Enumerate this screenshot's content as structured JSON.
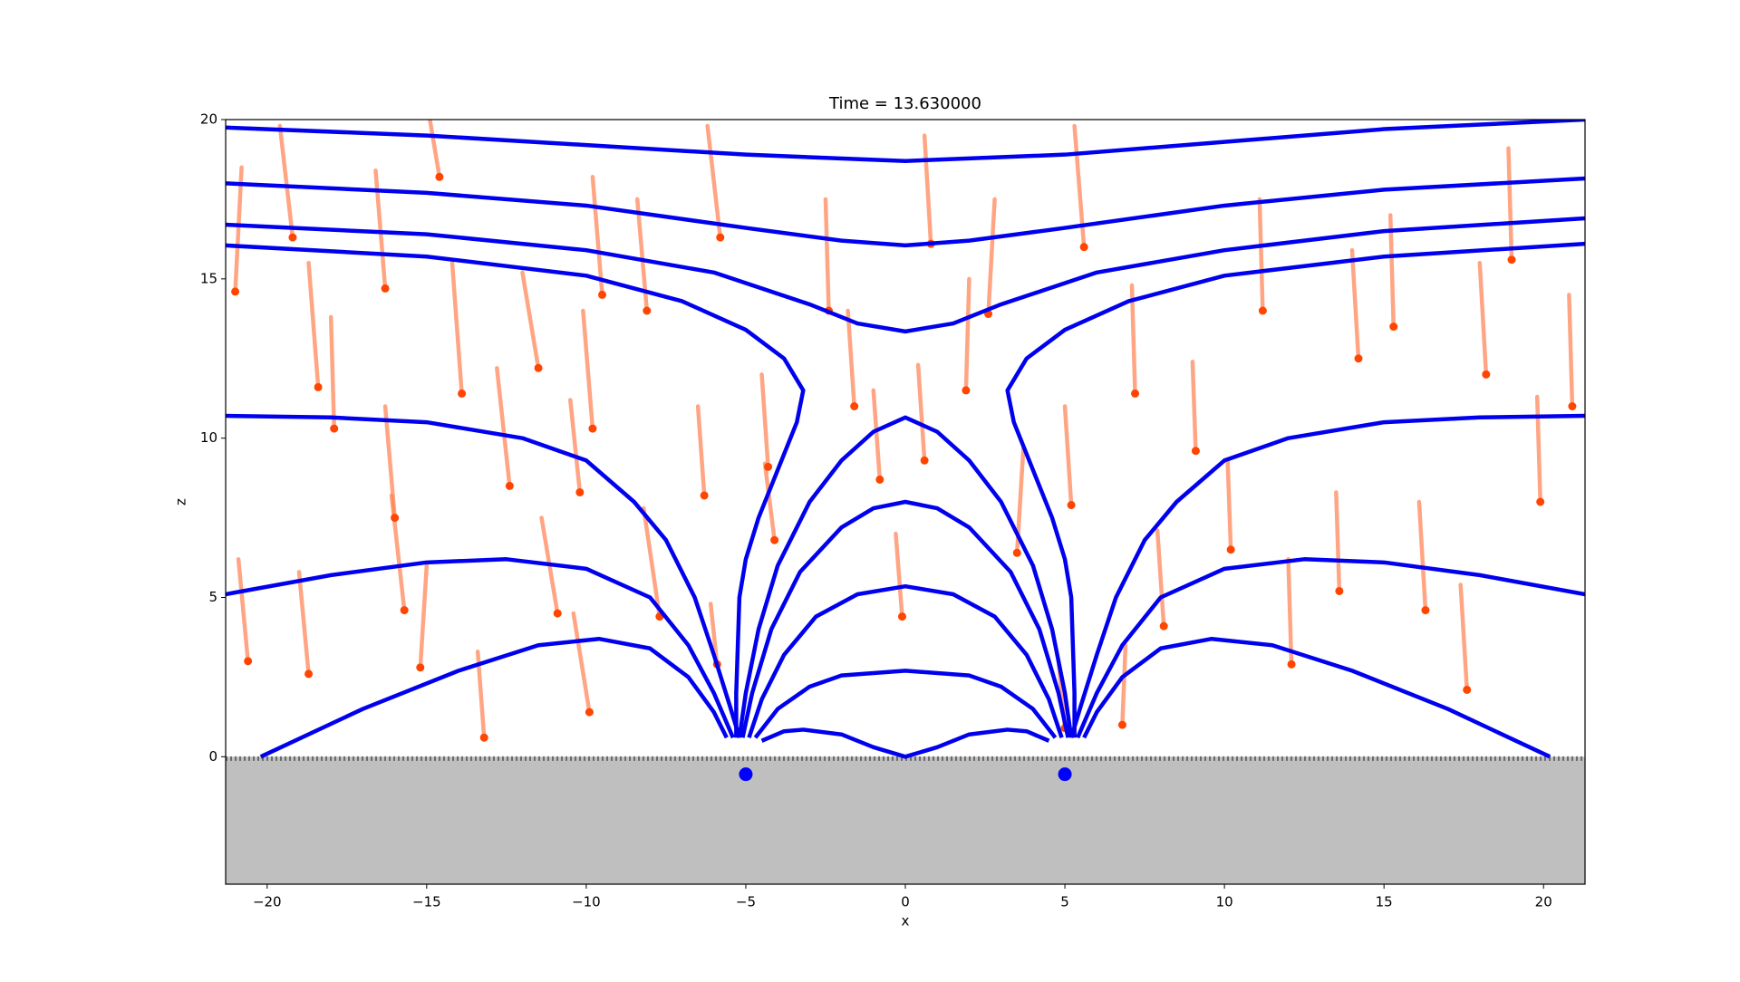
{
  "chart_data": {
    "type": "line",
    "title": "Time = 13.630000",
    "x_label": "x",
    "y_label": "z",
    "xlim": [
      -21.3,
      21.3
    ],
    "ylim": [
      -4,
      20
    ],
    "xticks": [
      {
        "value": -20,
        "label": "−20"
      },
      {
        "value": -15,
        "label": "−15"
      },
      {
        "value": -10,
        "label": "−10"
      },
      {
        "value": -5,
        "label": "−5"
      },
      0,
      5,
      10,
      15,
      20
    ],
    "yticks": [
      0,
      5,
      10,
      15,
      20
    ],
    "grid": false,
    "ground": {
      "color": "#bfbfbf",
      "top": 0
    },
    "particles": {
      "color": "#ff4500",
      "trail_color": "#ff7f50",
      "x": [
        -21.0,
        -19.2,
        -18.4,
        -17.9,
        -16.0,
        -15.7,
        -15.2,
        -16.3,
        -14.6,
        -13.9,
        -12.4,
        -11.5,
        -10.2,
        -9.8,
        -10.9,
        -9.9,
        -9.5,
        -8.1,
        -7.7,
        -6.3,
        -5.8,
        -4.1,
        -4.3,
        -2.4,
        -1.6,
        -0.8,
        -0.1,
        0.6,
        0.8,
        1.9,
        2.6,
        3.5,
        5.2,
        5.6,
        7.2,
        8.1,
        9.1,
        10.2,
        11.2,
        12.1,
        13.6,
        14.2,
        15.3,
        16.3,
        17.6,
        18.2,
        19.0,
        19.9,
        20.9,
        -18.7,
        -20.6,
        5.0,
        -5.9,
        6.8,
        -13.2
      ],
      "values": [
        14.6,
        16.3,
        11.6,
        10.3,
        7.5,
        4.6,
        2.8,
        14.7,
        18.2,
        11.4,
        8.5,
        12.2,
        8.3,
        10.3,
        4.5,
        1.4,
        14.5,
        14.0,
        4.4,
        8.2,
        16.3,
        6.8,
        9.1,
        14.0,
        11.0,
        8.7,
        4.4,
        9.3,
        16.1,
        11.5,
        13.9,
        6.4,
        7.9,
        16.0,
        11.4,
        4.1,
        9.6,
        6.5,
        14.0,
        2.9,
        5.2,
        12.5,
        13.5,
        4.6,
        2.1,
        12.0,
        15.6,
        8.0,
        11.0,
        2.6,
        3.0,
        0.9,
        2.9,
        1.0,
        0.6
      ],
      "trail_x": [
        -20.8,
        -19.6,
        -18.7,
        -18.0,
        -16.3,
        -16.1,
        -15.0,
        -16.6,
        -14.9,
        -14.2,
        -12.8,
        -12.0,
        -10.5,
        -10.1,
        -11.4,
        -10.4,
        -9.8,
        -8.4,
        -8.2,
        -6.5,
        -6.2,
        -4.4,
        -4.5,
        -2.5,
        -1.8,
        -1.0,
        -0.3,
        0.4,
        0.6,
        2.0,
        2.8,
        3.7,
        5.0,
        5.3,
        7.1,
        7.9,
        9.0,
        10.1,
        11.1,
        12.0,
        13.5,
        14.0,
        15.2,
        16.1,
        17.4,
        18.0,
        18.9,
        19.8,
        20.8,
        -19.0,
        -20.9,
        4.8,
        -6.1,
        6.9,
        -13.4
      ],
      "trail_values": [
        18.5,
        19.8,
        15.5,
        13.8,
        11.0,
        8.2,
        6.0,
        18.4,
        20.0,
        15.5,
        12.2,
        15.2,
        11.2,
        14.0,
        7.5,
        4.5,
        18.2,
        17.5,
        7.8,
        11.0,
        19.8,
        9.2,
        12.0,
        17.5,
        14.0,
        11.5,
        7.0,
        12.3,
        19.5,
        15.0,
        17.5,
        9.7,
        11.0,
        19.8,
        14.8,
        7.1,
        12.4,
        9.3,
        17.5,
        6.2,
        8.3,
        15.9,
        17.0,
        8.0,
        5.4,
        15.5,
        19.1,
        11.3,
        14.5,
        5.8,
        6.2,
        3.0,
        4.8,
        3.5,
        3.3
      ]
    },
    "series": [
      {
        "type": "line",
        "color": "#0000ee",
        "x": [
          -21.3,
          -15,
          -10,
          -5,
          0,
          5,
          10,
          15,
          21.3
        ],
        "values": [
          19.75,
          19.5,
          19.2,
          18.9,
          18.7,
          18.9,
          19.3,
          19.7,
          20.0
        ]
      },
      {
        "type": "line",
        "color": "#0000ee",
        "x": [
          -21.3,
          -15,
          -10,
          -5,
          -2,
          0,
          2,
          5,
          10,
          15,
          21.3
        ],
        "values": [
          18.0,
          17.7,
          17.3,
          16.6,
          16.2,
          16.05,
          16.2,
          16.6,
          17.3,
          17.8,
          18.15
        ]
      },
      {
        "type": "line",
        "color": "#0000ee",
        "x": [
          -21.3,
          -15,
          -10,
          -6,
          -3,
          -1.5,
          0,
          1.5,
          3,
          6,
          10,
          15,
          21.3
        ],
        "values": [
          16.7,
          16.4,
          15.9,
          15.2,
          14.2,
          13.6,
          13.35,
          13.6,
          14.2,
          15.2,
          15.9,
          16.5,
          16.9
        ]
      },
      {
        "type": "line",
        "color": "#0000ee",
        "x": [
          -21.3,
          -15,
          -10,
          -7,
          -5,
          -3.8,
          -3.2,
          -3.4,
          -4.0,
          -4.6,
          -5.0,
          -5.2,
          -5.25,
          -5.3,
          -5.3
        ],
        "values": [
          16.05,
          15.7,
          15.1,
          14.3,
          13.4,
          12.5,
          11.5,
          10.5,
          9.0,
          7.5,
          6.2,
          5.0,
          3.5,
          2.0,
          0.6
        ]
      },
      {
        "type": "line",
        "color": "#0000ee",
        "x": [
          21.3,
          15,
          10,
          7,
          5,
          3.8,
          3.2,
          3.4,
          4.0,
          4.6,
          5.0,
          5.2,
          5.25,
          5.3,
          5.3
        ],
        "values": [
          16.1,
          15.7,
          15.1,
          14.3,
          13.4,
          12.5,
          11.5,
          10.5,
          9.0,
          7.5,
          6.2,
          5.0,
          3.5,
          2.0,
          0.6
        ]
      },
      {
        "type": "line",
        "color": "#0000ee",
        "x": [
          -21.3,
          -18,
          -15,
          -12,
          -10,
          -8.5,
          -7.5,
          -6.6,
          -6.0,
          -5.5,
          -5.2
        ],
        "values": [
          10.7,
          10.65,
          10.5,
          10.0,
          9.3,
          8.0,
          6.8,
          5.0,
          3.2,
          1.6,
          0.6
        ]
      },
      {
        "type": "line",
        "color": "#0000ee",
        "x": [
          21.3,
          18,
          15,
          12,
          10,
          8.5,
          7.5,
          6.6,
          6.0,
          5.5,
          5.2
        ],
        "values": [
          10.7,
          10.65,
          10.5,
          10.0,
          9.3,
          8.0,
          6.8,
          5.0,
          3.2,
          1.6,
          0.6
        ]
      },
      {
        "type": "line",
        "color": "#0000ee",
        "x": [
          -21.3,
          -18,
          -15,
          -12.5,
          -10,
          -8,
          -6.8,
          -6.0,
          -5.4
        ],
        "values": [
          5.1,
          5.7,
          6.1,
          6.2,
          5.9,
          5.0,
          3.5,
          2.0,
          0.6
        ]
      },
      {
        "type": "line",
        "color": "#0000ee",
        "x": [
          21.3,
          18,
          15,
          12.5,
          10,
          8,
          6.8,
          6.0,
          5.4
        ],
        "values": [
          5.1,
          5.7,
          6.1,
          6.2,
          5.9,
          5.0,
          3.5,
          2.0,
          0.6
        ]
      },
      {
        "type": "line",
        "color": "#0000ee",
        "x": [
          -20.2,
          -17,
          -14,
          -11.5,
          -9.6,
          -8,
          -6.8,
          -6.0,
          -5.6
        ],
        "values": [
          0,
          1.5,
          2.7,
          3.5,
          3.7,
          3.4,
          2.5,
          1.4,
          0.6
        ]
      },
      {
        "type": "line",
        "color": "#0000ee",
        "x": [
          20.2,
          17,
          14,
          11.5,
          9.6,
          8,
          6.8,
          6.0,
          5.6
        ],
        "values": [
          0,
          1.5,
          2.7,
          3.5,
          3.7,
          3.4,
          2.5,
          1.4,
          0.6
        ]
      },
      {
        "type": "line",
        "color": "#0000ee",
        "x": [
          -5.2,
          -5.0,
          -4.6,
          -4.0,
          -3.0,
          -2,
          -1,
          0,
          1,
          2,
          3.0,
          4.0,
          4.6,
          5.0,
          5.2
        ],
        "values": [
          0.6,
          2.0,
          4.0,
          6.0,
          8.0,
          9.3,
          10.2,
          10.65,
          10.2,
          9.3,
          8.0,
          6.0,
          4.0,
          2.0,
          0.6
        ]
      },
      {
        "type": "line",
        "color": "#0000ee",
        "x": [
          -5.1,
          -4.8,
          -4.2,
          -3.3,
          -2,
          -1,
          0,
          1,
          2,
          3.3,
          4.2,
          4.8,
          5.1
        ],
        "values": [
          0.6,
          2.0,
          4.0,
          5.8,
          7.2,
          7.8,
          8.0,
          7.8,
          7.2,
          5.8,
          4.0,
          2.0,
          0.6
        ]
      },
      {
        "type": "line",
        "color": "#0000ee",
        "x": [
          -4.9,
          -4.5,
          -3.8,
          -2.8,
          -1.5,
          0,
          1.5,
          2.8,
          3.8,
          4.5,
          4.9
        ],
        "values": [
          0.6,
          1.8,
          3.2,
          4.4,
          5.1,
          5.35,
          5.1,
          4.4,
          3.2,
          1.8,
          0.6
        ]
      },
      {
        "type": "line",
        "color": "#0000ee",
        "x": [
          -4.7,
          -4.0,
          -3,
          -2,
          0,
          2,
          3,
          4.0,
          4.7
        ],
        "values": [
          0.6,
          1.5,
          2.2,
          2.55,
          2.7,
          2.55,
          2.2,
          1.5,
          0.6
        ]
      },
      {
        "type": "line",
        "color": "#0000ee",
        "x": [
          -4.5,
          -3.8,
          -3.2,
          -2,
          -1,
          0,
          1,
          2,
          3.2,
          3.8,
          4.5
        ],
        "values": [
          0.5,
          0.8,
          0.85,
          0.7,
          0.3,
          0.0,
          0.3,
          0.7,
          0.85,
          0.8,
          0.5
        ]
      },
      {
        "type": "scatter",
        "color": "#0000ff",
        "x": [
          -5,
          5
        ],
        "values": [
          -0.55,
          -0.55
        ]
      }
    ]
  }
}
